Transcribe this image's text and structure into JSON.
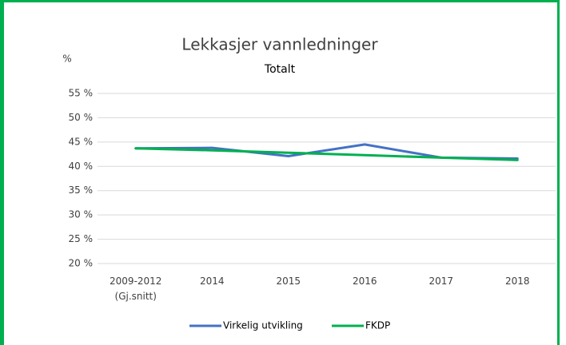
{
  "chart_data": {
    "type": "line",
    "title": "Lekkasjer vannledninger",
    "subtitle": "Totalt",
    "y_label": "%",
    "categories": [
      "2009-2012\n(Gj.snitt)",
      "2014",
      "2015",
      "2016",
      "2017",
      "2018"
    ],
    "series": [
      {
        "name": "Virkelig utvikling",
        "color": "#4472c4",
        "values": [
          43.7,
          43.8,
          42.1,
          44.5,
          41.8,
          41.6
        ]
      },
      {
        "name": "FKDP",
        "color": "#00b050",
        "values": [
          43.7,
          43.3,
          42.8,
          42.3,
          41.8,
          41.3
        ]
      }
    ],
    "ylim": [
      20,
      55
    ],
    "yticks": [
      {
        "value": 20,
        "label": "20 %"
      },
      {
        "value": 25,
        "label": "25 %"
      },
      {
        "value": 30,
        "label": "30 %"
      },
      {
        "value": 35,
        "label": "35 %"
      },
      {
        "value": 40,
        "label": "40 %"
      },
      {
        "value": 45,
        "label": "45 %"
      },
      {
        "value": 50,
        "label": "50 %"
      },
      {
        "value": 55,
        "label": "55 %"
      }
    ],
    "grid": true,
    "legend": "bottom"
  }
}
